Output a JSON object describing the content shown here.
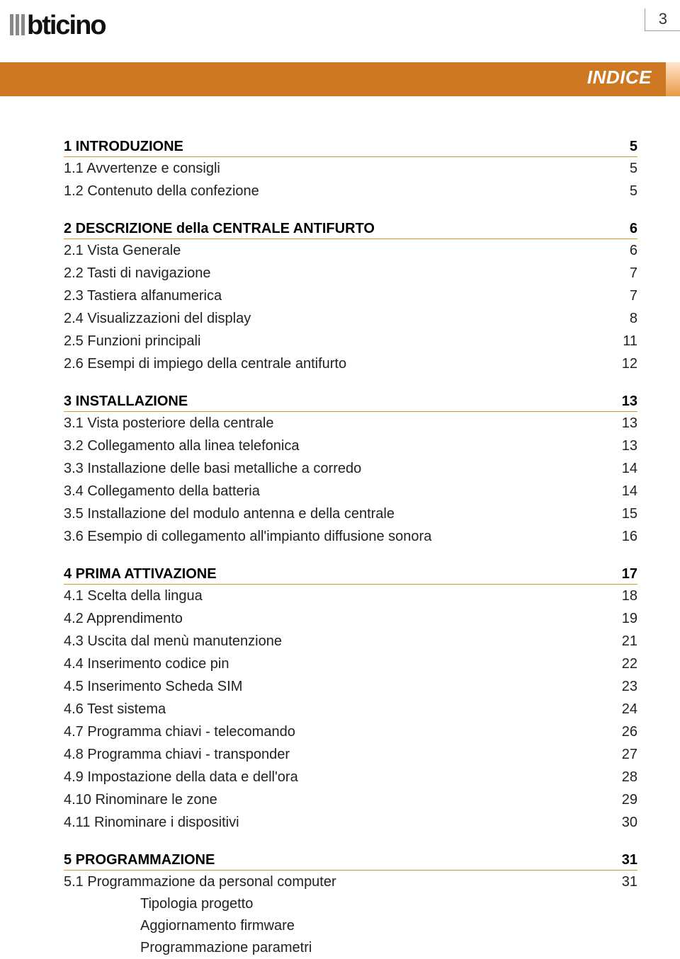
{
  "header": {
    "page_number": "3",
    "title": "INDICE"
  },
  "colors": {
    "title_bar_bg": "#cf7823",
    "title_text": "#ffffff",
    "section_underline": "#d7962b",
    "body_text": "#000000"
  },
  "sections": [
    {
      "head": {
        "label": "1 INTRODUZIONE",
        "page": "5"
      },
      "items": [
        {
          "label": "1.1 Avvertenze e consigli",
          "page": "5"
        },
        {
          "label": "1.2 Contenuto della confezione",
          "page": "5"
        }
      ]
    },
    {
      "head": {
        "label": "2 DESCRIZIONE della CENTRALE ANTIFURTO",
        "page": "6"
      },
      "items": [
        {
          "label": "2.1 Vista Generale",
          "page": "6"
        },
        {
          "label": "2.2 Tasti di navigazione",
          "page": "7"
        },
        {
          "label": "2.3 Tastiera alfanumerica",
          "page": "7"
        },
        {
          "label": "2.4 Visualizzazioni del display",
          "page": "8"
        },
        {
          "label": "2.5 Funzioni principali",
          "page": "11"
        },
        {
          "label": "2.6 Esempi di impiego della centrale antifurto",
          "page": "12"
        }
      ]
    },
    {
      "head": {
        "label": "3 INSTALLAZIONE",
        "page": "13"
      },
      "items": [
        {
          "label": "3.1 Vista posteriore della centrale",
          "page": "13"
        },
        {
          "label": "3.2 Collegamento alla linea telefonica",
          "page": "13"
        },
        {
          "label": "3.3 Installazione delle basi metalliche a corredo",
          "page": "14"
        },
        {
          "label": "3.4 Collegamento della batteria",
          "page": "14"
        },
        {
          "label": "3.5 Installazione del modulo antenna e della centrale",
          "page": "15"
        },
        {
          "label": "3.6 Esempio di collegamento all'impianto diffusione sonora",
          "page": "16"
        }
      ]
    },
    {
      "head": {
        "label": "4 PRIMA ATTIVAZIONE",
        "page": "17"
      },
      "items": [
        {
          "label": "4.1 Scelta della lingua",
          "page": "18"
        },
        {
          "label": "4.2 Apprendimento",
          "page": "19"
        },
        {
          "label": "4.3 Uscita dal menù manutenzione",
          "page": "21"
        },
        {
          "label": "4.4 Inserimento codice pin",
          "page": "22"
        },
        {
          "label": "4.5 Inserimento Scheda SIM",
          "page": "23"
        },
        {
          "label": "4.6 Test sistema",
          "page": "24"
        },
        {
          "label": "4.7 Programma chiavi - telecomando",
          "page": "26"
        },
        {
          "label": "4.8 Programma chiavi - transponder",
          "page": "27"
        },
        {
          "label": "4.9 Impostazione della data e dell'ora",
          "page": "28"
        },
        {
          "label": "4.10 Rinominare le zone",
          "page": "29"
        },
        {
          "label": "4.11 Rinominare i dispositivi",
          "page": "30"
        }
      ]
    },
    {
      "head": {
        "label": "5 PROGRAMMAZIONE",
        "page": "31"
      },
      "items": [
        {
          "label": "5.1 Programmazione da personal computer",
          "page": "31"
        }
      ],
      "subitems": [
        "Tipologia progetto",
        "Aggiornamento firmware",
        "Programmazione parametri"
      ]
    }
  ]
}
